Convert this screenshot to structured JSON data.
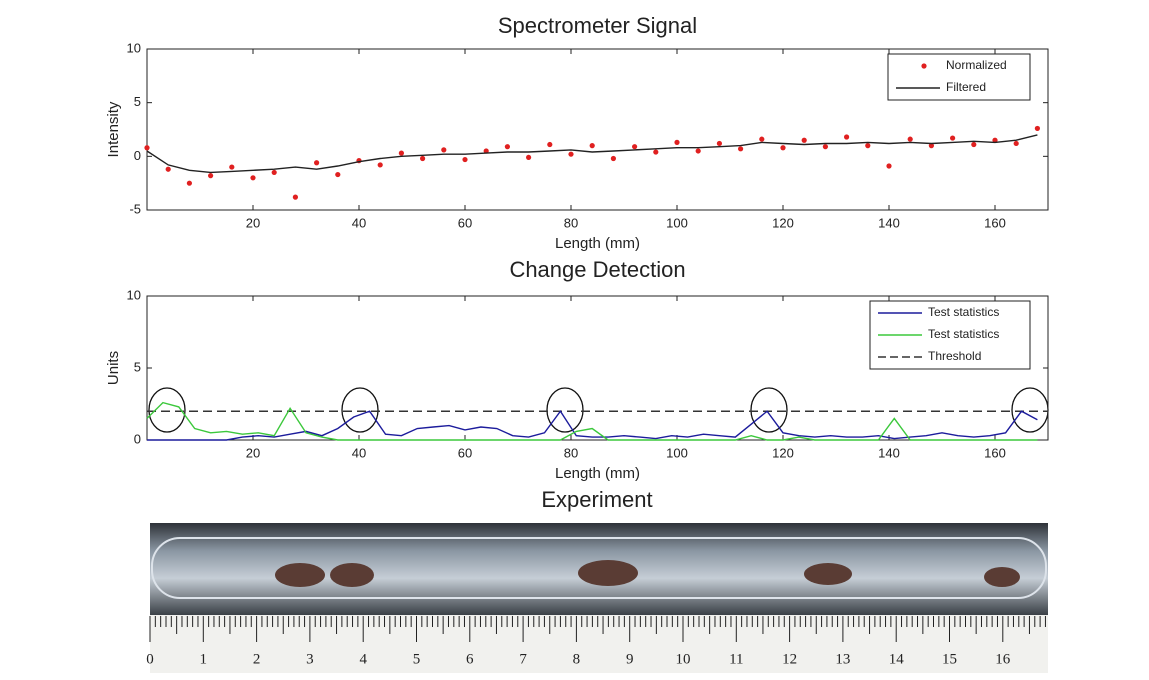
{
  "chart_data": [
    {
      "type": "scatter",
      "title": "Spectrometer Signal",
      "x_label": "Length (mm)",
      "y_label": "Intensity",
      "x": [
        0,
        4,
        8,
        12,
        16,
        20,
        24,
        28,
        32,
        36,
        40,
        44,
        48,
        52,
        56,
        60,
        64,
        68,
        72,
        76,
        80,
        84,
        88,
        92,
        96,
        100,
        104,
        108,
        112,
        116,
        120,
        124,
        128,
        132,
        136,
        140,
        144,
        148,
        152,
        156,
        160,
        164,
        168
      ],
      "series": [
        {
          "name": "Normalized",
          "color": "#e02020",
          "mode": "markers",
          "values": [
            0.8,
            -1.2,
            -2.5,
            -1.8,
            -1.0,
            -2.0,
            -1.5,
            -3.8,
            -0.6,
            -1.7,
            -0.4,
            -0.8,
            0.3,
            -0.2,
            0.6,
            -0.3,
            0.5,
            0.9,
            -0.1,
            1.1,
            0.2,
            1.0,
            -0.2,
            0.9,
            0.4,
            1.3,
            0.5,
            1.2,
            0.7,
            1.6,
            0.8,
            1.5,
            0.9,
            1.8,
            1.0,
            -0.9,
            1.6,
            1.0,
            1.7,
            1.1,
            1.5,
            1.2,
            2.6
          ]
        },
        {
          "name": "Filtered",
          "color": "#222222",
          "mode": "line",
          "values": [
            0.5,
            -0.8,
            -1.3,
            -1.5,
            -1.4,
            -1.3,
            -1.2,
            -1.0,
            -1.2,
            -0.9,
            -0.5,
            -0.2,
            0,
            0.1,
            0.2,
            0.2,
            0.3,
            0.4,
            0.4,
            0.5,
            0.6,
            0.4,
            0.5,
            0.6,
            0.7,
            0.8,
            0.8,
            0.9,
            1.0,
            1.3,
            1.2,
            1.1,
            1.2,
            1.2,
            1.3,
            1.2,
            1.3,
            1.2,
            1.3,
            1.4,
            1.3,
            1.5,
            2.0
          ]
        }
      ],
      "xlim": [
        0,
        170
      ],
      "xticks": [
        20,
        40,
        60,
        80,
        100,
        120,
        140,
        160
      ],
      "ylim": [
        -5,
        10
      ],
      "yticks": [
        -5,
        0,
        5,
        10
      ],
      "legend": "upper right"
    },
    {
      "type": "line",
      "title": "Change Detection",
      "x_label": "Length (mm)",
      "y_label": "Units",
      "x": [
        0,
        3,
        6,
        9,
        12,
        15,
        18,
        21,
        24,
        27,
        30,
        33,
        36,
        39,
        42,
        45,
        48,
        51,
        54,
        57,
        60,
        63,
        66,
        69,
        72,
        75,
        78,
        81,
        84,
        87,
        90,
        93,
        96,
        99,
        102,
        105,
        108,
        111,
        114,
        117,
        120,
        123,
        126,
        129,
        132,
        135,
        138,
        141,
        144,
        147,
        150,
        153,
        156,
        159,
        162,
        165,
        168
      ],
      "series": [
        {
          "name": "Test statistics",
          "color": "#1c1c9c",
          "mode": "line",
          "values": [
            0,
            0,
            0,
            0,
            0,
            0,
            0.2,
            0.3,
            0.2,
            0.4,
            0.6,
            0.3,
            0.8,
            1.6,
            2.0,
            0.4,
            0.3,
            0.8,
            0.9,
            1.0,
            0.7,
            0.9,
            0.8,
            0.3,
            0.2,
            0.5,
            2.0,
            0.3,
            0.2,
            0.2,
            0.3,
            0.2,
            0.1,
            0.3,
            0.2,
            0.4,
            0.3,
            0.2,
            1.1,
            2.0,
            0.5,
            0.3,
            0.2,
            0.3,
            0.2,
            0.2,
            0.3,
            0.1,
            0.2,
            0.3,
            0.5,
            0.3,
            0.2,
            0.3,
            0.5,
            2.0,
            1.4
          ]
        },
        {
          "name": "Test statistics",
          "color": "#3cc83c",
          "mode": "line",
          "values": [
            1.5,
            2.6,
            2.3,
            0.8,
            0.5,
            0.6,
            0.4,
            0.5,
            0.3,
            2.2,
            0.5,
            0.2,
            0,
            0,
            0,
            0,
            0,
            0,
            0,
            0,
            0,
            0,
            0,
            0,
            0,
            0,
            0,
            0.6,
            0.8,
            0,
            0,
            0,
            0,
            0,
            0,
            0,
            0,
            0,
            0.3,
            0,
            0,
            0.2,
            0,
            0,
            0,
            0,
            0,
            1.5,
            0,
            0,
            0,
            0,
            0,
            0,
            0,
            0,
            0
          ]
        }
      ],
      "threshold": {
        "name": "Threshold",
        "value": 2,
        "color": "#333333"
      },
      "xlim": [
        0,
        170
      ],
      "xticks": [
        20,
        40,
        60,
        80,
        100,
        120,
        140,
        160
      ],
      "ylim": [
        0,
        10
      ],
      "yticks": [
        0,
        5,
        10
      ],
      "legend": "upper right"
    }
  ],
  "experiment": {
    "title": "Experiment",
    "ruler_labels": [
      "0",
      "1",
      "2",
      "3",
      "4",
      "5",
      "6",
      "7",
      "8",
      "9",
      "10",
      "11",
      "12",
      "13",
      "14",
      "15",
      "16"
    ]
  }
}
